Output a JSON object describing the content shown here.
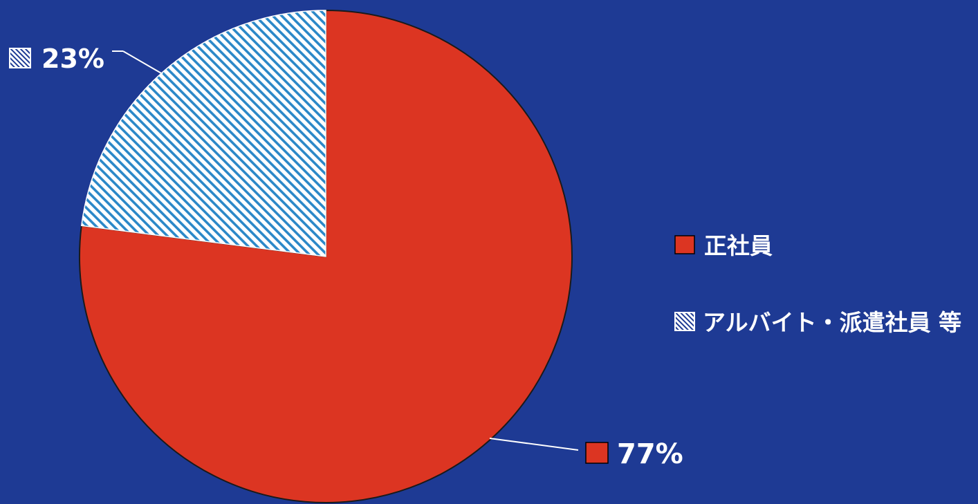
{
  "chart_data": {
    "type": "pie",
    "title": "",
    "slices": [
      {
        "label": "正社員",
        "value": 77,
        "display": "77%",
        "pattern": "solid",
        "color": "#dc3522"
      },
      {
        "label": "アルバイト・派遣社員 等",
        "value": 23,
        "display": "23%",
        "pattern": "hatched",
        "color": "#ffffff"
      }
    ],
    "legend": {
      "placement": "right",
      "items": [
        "正社員",
        "アルバイト・派遣社員 等"
      ]
    },
    "colors": {
      "background": "#1e3a94",
      "solid_slice": "#dc3522",
      "hatch_line": "#2b88c8",
      "hatch_base": "#ffffff",
      "text": "#ffffff"
    }
  }
}
